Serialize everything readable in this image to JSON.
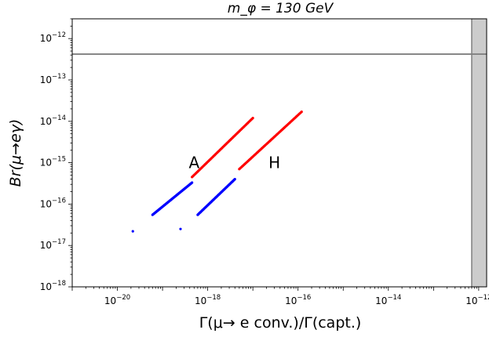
{
  "chart_data": {
    "type": "scatter",
    "title": "m_φ = 130 GeV",
    "xlabel": "Γ(μ→ e conv.)/Γ(capt.)",
    "ylabel": "Br(μ→eγ)",
    "xscale": "log",
    "yscale": "log",
    "xlim": [
      1e-21,
      1.5e-12
    ],
    "ylim": [
      1e-18,
      3e-12
    ],
    "grid": false,
    "x_ticks": [
      {
        "value": 1e-20,
        "label": "10^-20"
      },
      {
        "value": 1e-18,
        "label": "10^-18"
      },
      {
        "value": 1e-16,
        "label": "10^-16"
      },
      {
        "value": 1e-14,
        "label": "10^-14"
      },
      {
        "value": 1e-12,
        "label": "10^-12"
      }
    ],
    "y_ticks": [
      {
        "value": 1e-18,
        "label": "10^-18"
      },
      {
        "value": 1e-17,
        "label": "10^-17"
      },
      {
        "value": 1e-16,
        "label": "10^-16"
      },
      {
        "value": 1e-15,
        "label": "10^-15"
      },
      {
        "value": 1e-14,
        "label": "10^-14"
      },
      {
        "value": 1e-13,
        "label": "10^-13"
      },
      {
        "value": 1e-12,
        "label": "10^-12"
      }
    ],
    "hline": {
      "y": 4.2e-13,
      "color": "#808080"
    },
    "excluded_region": {
      "x_from": 7e-13,
      "x_to": 1.5e-12,
      "color": "#cccccc"
    },
    "annotations": [
      {
        "text": "A",
        "x": 5e-19,
        "y": 1e-15
      },
      {
        "text": "H",
        "x": 3e-17,
        "y": 1e-15
      }
    ],
    "bands": [
      {
        "group": "A",
        "color": "#0000ff",
        "x": [
          6e-20,
          4.5e-19
        ],
        "y": [
          5.5e-17,
          3.3e-16
        ]
      },
      {
        "group": "A",
        "color": "#ff0000",
        "x": [
          4.5e-19,
          1e-17
        ],
        "y": [
          4.5e-16,
          1.2e-14
        ]
      },
      {
        "group": "H",
        "color": "#0000ff",
        "x": [
          6e-19,
          4e-18
        ],
        "y": [
          5.5e-17,
          4e-16
        ]
      },
      {
        "group": "H",
        "color": "#ff0000",
        "x": [
          5e-18,
          1.2e-16
        ],
        "y": [
          7e-16,
          1.7e-14
        ]
      }
    ],
    "points": [
      {
        "group": "A",
        "color": "#0000ff",
        "x": 2.2e-20,
        "y": 2.2e-17
      },
      {
        "group": "H",
        "color": "#0000ff",
        "x": 2.5e-19,
        "y": 2.5e-17
      }
    ]
  }
}
